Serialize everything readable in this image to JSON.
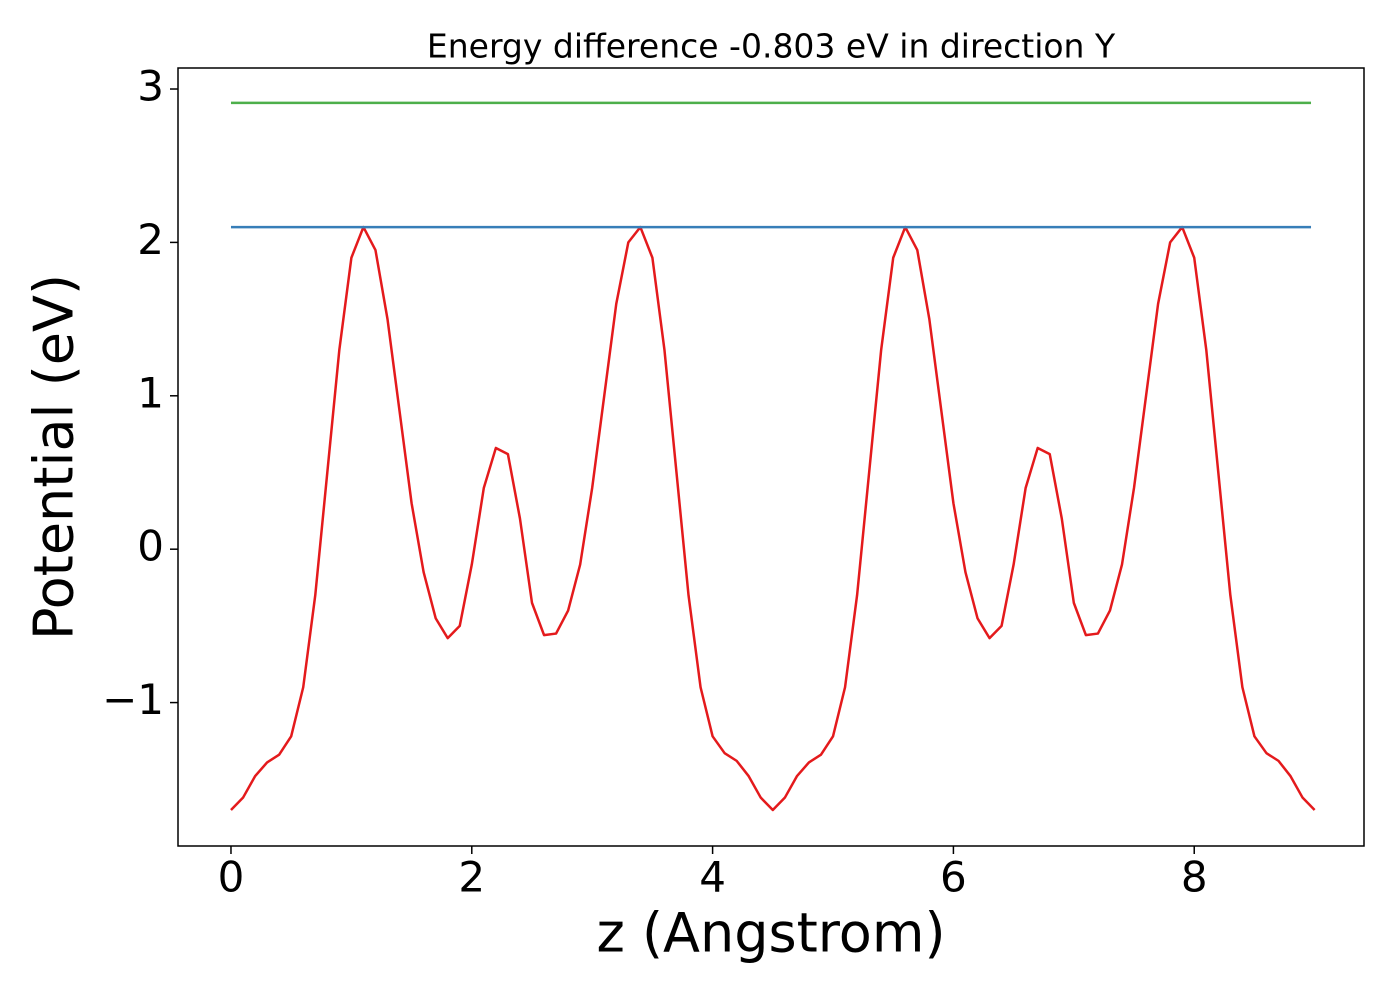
{
  "chart_data": {
    "type": "line",
    "title": "Energy difference -0.803 eV in direction Y",
    "xlabel": "z (Angstrom)",
    "ylabel": "Potential (eV)",
    "xlim": [
      -0.44,
      9.41
    ],
    "ylim": [
      -1.935,
      3.137
    ],
    "xticks": [
      0,
      2,
      4,
      6,
      8
    ],
    "yticks": [
      {
        "value": -1,
        "label": "−1"
      },
      0,
      1,
      2,
      3
    ],
    "series": [
      {
        "color": "#e41a1c",
        "x": [
          0,
          0.1,
          0.2,
          0.3,
          0.4,
          0.5,
          0.6,
          0.7,
          0.8,
          0.9,
          1.0,
          1.1,
          1.2,
          1.3,
          1.4,
          1.5,
          1.6,
          1.7,
          1.8,
          1.9,
          2.0,
          2.1,
          2.2,
          2.3,
          2.4,
          2.5,
          2.6,
          2.7,
          2.8,
          2.9,
          3.0,
          3.1,
          3.2,
          3.3,
          3.4,
          3.5,
          3.6,
          3.7,
          3.8,
          3.9,
          4.0,
          4.1,
          4.2,
          4.3,
          4.4,
          4.5,
          4.6,
          4.7,
          4.8,
          4.9,
          5.0,
          5.1,
          5.2,
          5.3,
          5.4,
          5.5,
          5.6,
          5.7,
          5.8,
          5.9,
          6.0,
          6.1,
          6.2,
          6.3,
          6.4,
          6.5,
          6.6,
          6.7,
          6.8,
          6.9,
          7.0,
          7.1,
          7.2,
          7.3,
          7.4,
          7.5,
          7.6,
          7.7,
          7.8,
          7.9,
          8.0,
          8.1,
          8.2,
          8.3,
          8.4,
          8.5,
          8.6,
          8.7,
          8.8,
          8.9,
          9.0
        ],
        "values": [
          -1.7,
          -1.62,
          -1.48,
          -1.39,
          -1.34,
          -1.22,
          -0.9,
          -0.3,
          0.5,
          1.3,
          1.9,
          2.1,
          1.95,
          1.5,
          0.9,
          0.3,
          -0.15,
          -0.45,
          -0.58,
          -0.5,
          -0.1,
          0.4,
          0.66,
          0.62,
          0.2,
          -0.35,
          -0.56,
          -0.55,
          -0.4,
          -0.1,
          0.4,
          1.0,
          1.6,
          2.0,
          2.1,
          1.9,
          1.3,
          0.5,
          -0.3,
          -0.9,
          -1.22,
          -1.33,
          -1.38,
          -1.48,
          -1.62,
          -1.7,
          -1.62,
          -1.48,
          -1.39,
          -1.34,
          -1.22,
          -0.9,
          -0.3,
          0.5,
          1.3,
          1.9,
          2.1,
          1.95,
          1.5,
          0.9,
          0.3,
          -0.15,
          -0.45,
          -0.58,
          -0.5,
          -0.1,
          0.4,
          0.66,
          0.62,
          0.2,
          -0.35,
          -0.56,
          -0.55,
          -0.4,
          -0.1,
          0.4,
          1.0,
          1.6,
          2.0,
          2.1,
          1.9,
          1.3,
          0.5,
          -0.3,
          -0.9,
          -1.22,
          -1.33,
          -1.38,
          -1.48,
          -1.62,
          -1.7
        ]
      },
      {
        "color": "#377eb8",
        "x": [
          0,
          8.97
        ],
        "values": [
          2.1,
          2.1
        ]
      },
      {
        "color": "#4daf4a",
        "x": [
          0,
          8.97
        ],
        "values": [
          2.91,
          2.91
        ]
      }
    ]
  }
}
